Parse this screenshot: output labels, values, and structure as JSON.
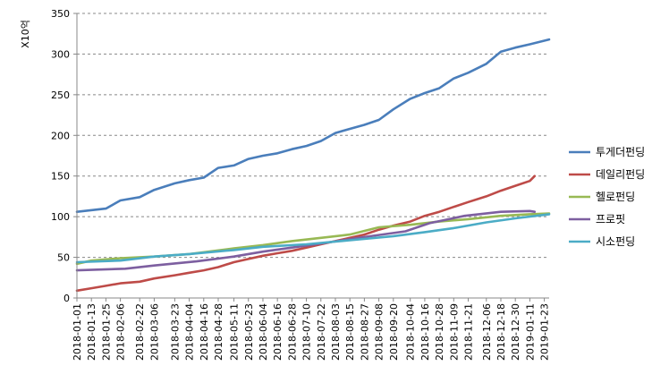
{
  "chart_data": {
    "type": "line",
    "ylabel": "X10억",
    "ylim": [
      0,
      350
    ],
    "yticks": [
      0,
      50,
      100,
      150,
      200,
      250,
      300,
      350
    ],
    "grid": "horizontal dashed",
    "legend_position": "right",
    "xlim": [
      "2018-01-01",
      "2019-01-27"
    ],
    "x_tick_labels": [
      "2018-01-01",
      "2018-01-13",
      "2018-01-25",
      "2018-02-06",
      "2018-02-22",
      "2018-03-06",
      "2018-03-23",
      "2018-04-04",
      "2018-04-16",
      "2018-04-28",
      "2018-05-11",
      "2018-05-23",
      "2018-06-04",
      "2018-06-16",
      "2018-06-28",
      "2018-07-10",
      "2018-07-22",
      "2018-08-03",
      "2018-08-15",
      "2018-08-27",
      "2018-09-08",
      "2018-09-20",
      "2018-10-04",
      "2018-10-16",
      "2018-10-28",
      "2018-11-09",
      "2018-11-21",
      "2018-12-06",
      "2018-12-18",
      "2018-12-30",
      "2019-01-11",
      "2019-01-23"
    ],
    "series": [
      {
        "name": "투게더펀딩",
        "color": "#4A7EBB",
        "x": [
          "2018-01-01",
          "2018-01-25",
          "2018-02-06",
          "2018-02-22",
          "2018-03-06",
          "2018-03-23",
          "2018-04-04",
          "2018-04-16",
          "2018-04-28",
          "2018-05-11",
          "2018-05-23",
          "2018-06-04",
          "2018-06-16",
          "2018-06-28",
          "2018-07-10",
          "2018-07-22",
          "2018-08-03",
          "2018-08-15",
          "2018-08-27",
          "2018-09-08",
          "2018-09-20",
          "2018-10-04",
          "2018-10-16",
          "2018-10-28",
          "2018-11-09",
          "2018-11-21",
          "2018-12-06",
          "2018-12-18",
          "2018-12-30",
          "2019-01-11",
          "2019-01-27"
        ],
        "y": [
          106,
          110,
          120,
          124,
          133,
          141,
          145,
          148,
          160,
          163,
          171,
          175,
          178,
          183,
          187,
          193,
          203,
          208,
          213,
          219,
          232,
          245,
          252,
          258,
          270,
          277,
          288,
          303,
          308,
          312,
          318
        ]
      },
      {
        "name": "데일리펀딩",
        "color": "#BE4B48",
        "x": [
          "2018-01-01",
          "2018-01-13",
          "2018-01-25",
          "2018-02-06",
          "2018-02-22",
          "2018-03-06",
          "2018-03-23",
          "2018-04-04",
          "2018-04-16",
          "2018-04-28",
          "2018-05-11",
          "2018-05-23",
          "2018-06-04",
          "2018-06-16",
          "2018-06-28",
          "2018-07-10",
          "2018-07-22",
          "2018-08-03",
          "2018-08-15",
          "2018-08-27",
          "2018-09-08",
          "2018-09-20",
          "2018-10-04",
          "2018-10-16",
          "2018-10-28",
          "2018-11-09",
          "2018-11-21",
          "2018-12-06",
          "2018-12-18",
          "2018-12-30",
          "2019-01-11",
          "2019-01-15"
        ],
        "y": [
          9,
          12,
          15,
          18,
          20,
          24,
          28,
          31,
          34,
          38,
          44,
          48,
          52,
          55,
          58,
          62,
          66,
          70,
          74,
          78,
          84,
          89,
          94,
          101,
          106,
          112,
          118,
          125,
          132,
          138,
          144,
          150
        ]
      },
      {
        "name": "헬로펀딩",
        "color": "#98B954",
        "x": [
          "2018-01-01",
          "2018-01-13",
          "2018-02-06",
          "2018-03-06",
          "2018-04-04",
          "2018-05-11",
          "2018-06-04",
          "2018-06-28",
          "2018-07-22",
          "2018-08-15",
          "2018-09-08",
          "2018-10-04",
          "2018-10-28",
          "2018-11-21",
          "2018-12-18",
          "2019-01-11",
          "2019-01-27"
        ],
        "y": [
          42,
          46,
          49,
          51,
          54,
          61,
          65,
          70,
          74,
          78,
          87,
          90,
          94,
          97,
          101,
          103,
          104
        ]
      },
      {
        "name": "프로핏",
        "color": "#7D5FA0",
        "x": [
          "2018-01-01",
          "2018-02-10",
          "2018-03-06",
          "2018-04-10",
          "2018-05-11",
          "2018-06-04",
          "2018-06-28",
          "2018-07-22",
          "2018-08-27",
          "2018-09-30",
          "2018-10-20",
          "2018-11-18",
          "2018-12-18",
          "2019-01-11",
          "2019-01-15"
        ],
        "y": [
          34,
          36,
          40,
          45,
          51,
          57,
          62,
          67,
          75,
          82,
          92,
          101,
          106,
          107,
          106
        ]
      },
      {
        "name": "시소펀딩",
        "color": "#4BACC6",
        "x": [
          "2018-01-01",
          "2018-02-06",
          "2018-03-06",
          "2018-04-04",
          "2018-05-11",
          "2018-06-04",
          "2018-07-10",
          "2018-08-15",
          "2018-09-20",
          "2018-10-16",
          "2018-11-09",
          "2018-12-06",
          "2018-12-30",
          "2019-01-27"
        ],
        "y": [
          44,
          46,
          51,
          54,
          59,
          63,
          66,
          71,
          76,
          81,
          86,
          93,
          98,
          103
        ]
      }
    ]
  }
}
